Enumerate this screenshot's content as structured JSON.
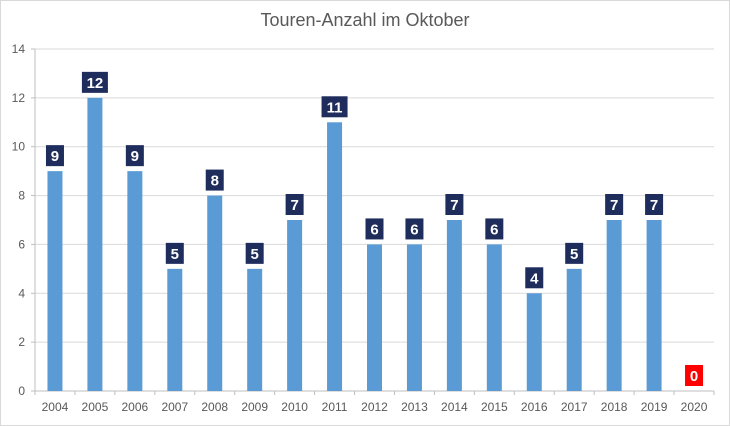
{
  "chart_data": {
    "type": "bar",
    "title": "Touren-Anzahl im Oktober",
    "xlabel": "",
    "ylabel": "",
    "categories": [
      "2004",
      "2005",
      "2006",
      "2007",
      "2008",
      "2009",
      "2010",
      "2011",
      "2012",
      "2013",
      "2014",
      "2015",
      "2016",
      "2017",
      "2018",
      "2019",
      "2020"
    ],
    "values": [
      9,
      12,
      9,
      5,
      8,
      5,
      7,
      11,
      6,
      6,
      7,
      6,
      4,
      5,
      7,
      7,
      0
    ],
    "ylim": [
      0,
      14
    ],
    "yticks": [
      0,
      2,
      4,
      6,
      8,
      10,
      12,
      14
    ],
    "grid": true,
    "legend": "none",
    "colors": {
      "bar": "#5b9bd5",
      "label_bg": "#1f2d5c",
      "label_bg_zero": "#ff0000",
      "grid": "#d9d9d9",
      "axis": "#bfbfbf"
    }
  }
}
